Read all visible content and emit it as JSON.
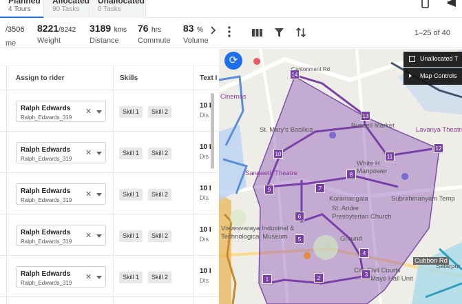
{
  "tabs": [
    {
      "title": "Planned",
      "sub": "4 Tours"
    },
    {
      "title": "Allocated",
      "sub": "90 Tasks"
    },
    {
      "title": "Unallocated",
      "sub": "0 Tasks"
    }
  ],
  "stats": [
    {
      "value": "/3506",
      "unit": "",
      "label": "me"
    },
    {
      "value": "8221",
      "unit": "/8242",
      "label": "Weight"
    },
    {
      "value": "3189",
      "unit": "kms",
      "label": "Distance"
    },
    {
      "value": "76",
      "unit": "hrs",
      "label": "Commute"
    },
    {
      "value": "83",
      "unit": "%",
      "label": "Volume"
    }
  ],
  "pagination": "1–25 of 40",
  "columns": {
    "assign": "Assign to rider",
    "skills": "Skills",
    "text": "Text I"
  },
  "rows": [
    {
      "rider": "Ralph Edwards",
      "rider_id": "Ralph_Edwards_319",
      "skill1": "Skill 1",
      "skill2": "Skill 2",
      "cut": "10 I",
      "cut2": "Dis"
    },
    {
      "rider": "Ralph Edwards",
      "rider_id": "Ralph_Edwards_319",
      "skill1": "Skill 1",
      "skill2": "Skill 2",
      "cut": "10 I",
      "cut2": "Dis"
    },
    {
      "rider": "Ralph Edwards",
      "rider_id": "Ralph_Edwards_319",
      "skill1": "Skill 1",
      "skill2": "Skill 2",
      "cut": "10 I",
      "cut2": "Dis"
    },
    {
      "rider": "Ralph Edwards",
      "rider_id": "Ralph_Edwards_319",
      "skill1": "Skill 1",
      "skill2": "Skill 2",
      "cut": "10 I",
      "cut2": "Dis"
    },
    {
      "rider": "Ralph Edwards",
      "rider_id": "Ralph_Edwards_319",
      "skill1": "Skill 1",
      "skill2": "Skill 2",
      "cut": "10 I",
      "cut2": "Dis"
    }
  ],
  "map": {
    "unallocated_toggle": "Unallocated T",
    "map_controls": "Map Controls",
    "labels": [
      "Cubbon Rd",
      "Lavanya Theatre",
      "St. Mary's Basilica",
      "Sangeeth Theatre",
      "White H",
      "Koramangala",
      "Subrahmanyam Temp",
      "St. Andre",
      "Presbyterian Church",
      "Ground",
      "City Civil Courts",
      "Mayo Hall Unit",
      "Visvesvaraya Industrial &",
      "Technological Museum",
      "Russell Market",
      "Salarpur",
      "Cantonment Rd",
      "Manpower",
      "Cinemas"
    ],
    "markers": [
      "14",
      "13",
      "12",
      "11",
      "10",
      "9",
      "8",
      "7",
      "6",
      "5",
      "4",
      "3",
      "2",
      "1"
    ]
  },
  "colors": {
    "accent": "#1f6feb",
    "polygon": "#8e5bb8"
  }
}
